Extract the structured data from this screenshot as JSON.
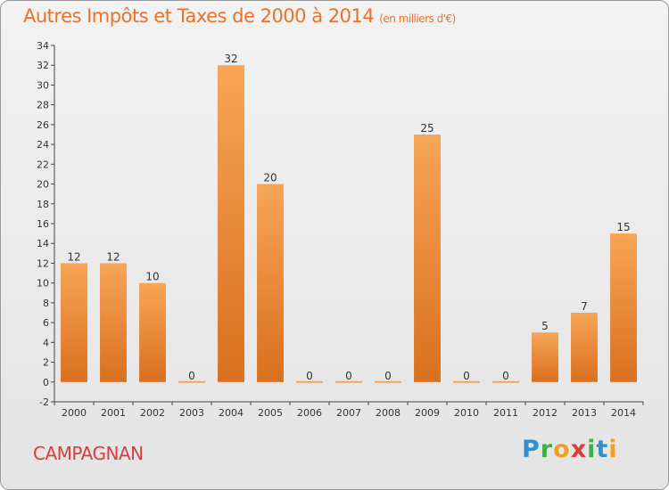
{
  "chart_data": {
    "type": "bar",
    "title": "Autres Impôts et Taxes de 2000 à 2014",
    "subtitle": "(en milliers d'€)",
    "categories": [
      "2000",
      "2001",
      "2002",
      "2003",
      "2004",
      "2005",
      "2006",
      "2007",
      "2008",
      "2009",
      "2010",
      "2011",
      "2012",
      "2013",
      "2014"
    ],
    "values": [
      12,
      12,
      10,
      0,
      32,
      20,
      0,
      0,
      0,
      25,
      0,
      0,
      5,
      7,
      15
    ],
    "ylim": [
      -2,
      34
    ],
    "yticks": [
      -2,
      0,
      2,
      4,
      6,
      8,
      10,
      12,
      14,
      16,
      18,
      20,
      22,
      24,
      26,
      28,
      30,
      32,
      34
    ],
    "grid": false,
    "bar_color_light": "#f7a556",
    "bar_color_dark": "#d8701f"
  },
  "footer": {
    "town": "CAMPAGNAN",
    "logo_letters": [
      "P",
      "r",
      "o",
      "x",
      "i",
      "t",
      "i"
    ],
    "logo_colors": [
      "#2f8fd1",
      "#3db04a",
      "#f0a020",
      "#e23a3a",
      "#3db04a",
      "#2f8fd1",
      "#f0a020"
    ]
  }
}
